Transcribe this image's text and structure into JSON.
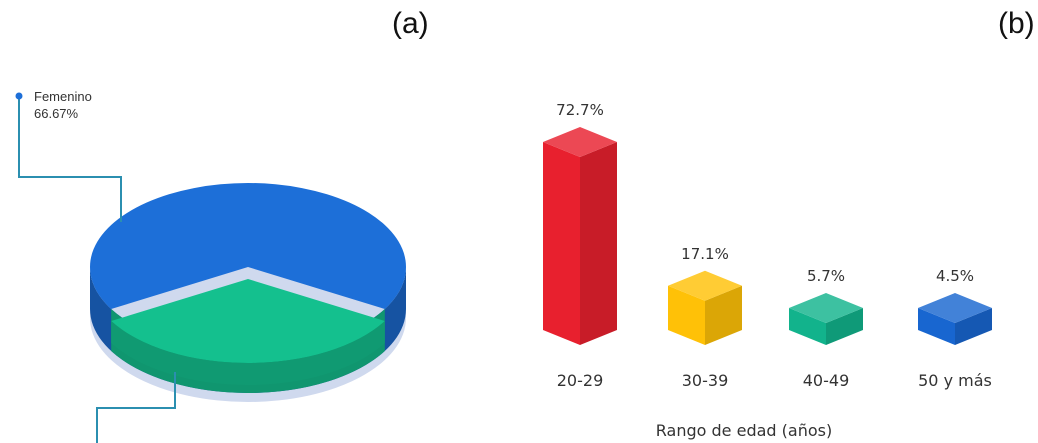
{
  "panel_labels": [
    "(a)",
    "(b)"
  ],
  "colors": {
    "femenino": "#1d6fd8",
    "masculino": "#14c08e",
    "bars": [
      "#e8202e",
      "#ffc107",
      "#12b38c",
      "#1866d0"
    ]
  },
  "chart_data": [
    {
      "type": "pie",
      "slices": [
        {
          "label": "Femenino",
          "value": 66.67,
          "value_label": "66.67%"
        },
        {
          "value": 33.33
        }
      ]
    },
    {
      "type": "bar",
      "categories": [
        "20-29",
        "30-39",
        "40-49",
        "50 y más"
      ],
      "values": [
        72.7,
        17.1,
        5.7,
        4.5
      ],
      "value_labels": [
        "72.7%",
        "17.1%",
        "5.7%",
        "4.5%"
      ],
      "xlabel": "Rango de edad (años)"
    }
  ]
}
